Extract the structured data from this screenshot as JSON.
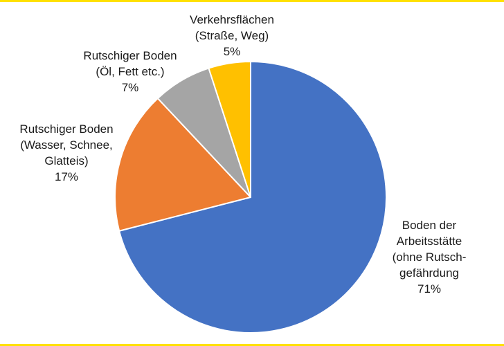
{
  "chart_data": {
    "type": "pie",
    "title": "",
    "legend": "none",
    "start_angle_deg": 0,
    "direction": "clockwise",
    "slices": [
      {
        "label_lines": [
          "Boden der",
          "Arbeitsstätte",
          "(ohne Rutsch-",
          "gefährdung"
        ],
        "value": 71,
        "value_label": "71%",
        "color": "#4472c4"
      },
      {
        "label_lines": [
          "Rutschiger Boden",
          "(Wasser, Schnee,",
          "Glatteis)"
        ],
        "value": 17,
        "value_label": "17%",
        "color": "#ed7d31"
      },
      {
        "label_lines": [
          "Rutschiger Boden",
          "(Öl, Fett etc.)"
        ],
        "value": 7,
        "value_label": "7%",
        "color": "#a5a5a5"
      },
      {
        "label_lines": [
          "Verkehrsflächen",
          "(Straße, Weg)"
        ],
        "value": 5,
        "value_label": "5%",
        "color": "#ffc000"
      }
    ]
  }
}
